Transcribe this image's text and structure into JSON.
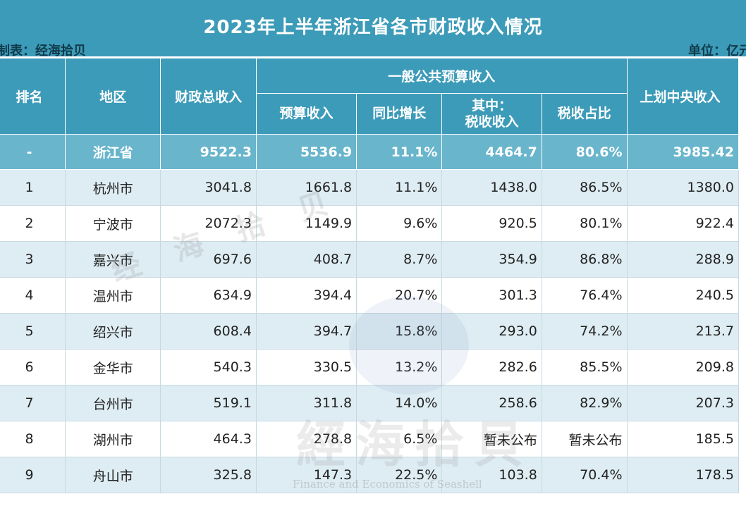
{
  "title": "2023年上半年浙江省各市财政收入情况",
  "maker": "制表：经海拾贝",
  "unit": "单位：亿元",
  "headers": {
    "rank": "排名",
    "region": "地区",
    "total_income": "财政总收入",
    "general_budget": "一般公共预算收入",
    "budget_income": "预算收入",
    "yoy_growth": "同比增长",
    "tax_income_line1": "其中：",
    "tax_income_line2": "税收收入",
    "tax_ratio": "税收占比",
    "central_income": "上划中央收入"
  },
  "total": {
    "rank": "-",
    "region": "浙江省",
    "total_income": "9522.3",
    "budget_income": "5536.9",
    "yoy_growth": "11.1%",
    "tax_income": "4464.7",
    "tax_ratio": "80.6%",
    "central_income": "3985.42"
  },
  "rows": [
    {
      "rank": "1",
      "region": "杭州市",
      "total_income": "3041.8",
      "budget_income": "1661.8",
      "yoy_growth": "11.1%",
      "tax_income": "1438.0",
      "tax_ratio": "86.5%",
      "central_income": "1380.0"
    },
    {
      "rank": "2",
      "region": "宁波市",
      "total_income": "2072.3",
      "budget_income": "1149.9",
      "yoy_growth": "9.6%",
      "tax_income": "920.5",
      "tax_ratio": "80.1%",
      "central_income": "922.4"
    },
    {
      "rank": "3",
      "region": "嘉兴市",
      "total_income": "697.6",
      "budget_income": "408.7",
      "yoy_growth": "8.7%",
      "tax_income": "354.9",
      "tax_ratio": "86.8%",
      "central_income": "288.9"
    },
    {
      "rank": "4",
      "region": "温州市",
      "total_income": "634.9",
      "budget_income": "394.4",
      "yoy_growth": "20.7%",
      "tax_income": "301.3",
      "tax_ratio": "76.4%",
      "central_income": "240.5"
    },
    {
      "rank": "5",
      "region": "绍兴市",
      "total_income": "608.4",
      "budget_income": "394.7",
      "yoy_growth": "15.8%",
      "tax_income": "293.0",
      "tax_ratio": "74.2%",
      "central_income": "213.7"
    },
    {
      "rank": "6",
      "region": "金华市",
      "total_income": "540.3",
      "budget_income": "330.5",
      "yoy_growth": "13.2%",
      "tax_income": "282.6",
      "tax_ratio": "85.5%",
      "central_income": "209.8"
    },
    {
      "rank": "7",
      "region": "台州市",
      "total_income": "519.1",
      "budget_income": "311.8",
      "yoy_growth": "14.0%",
      "tax_income": "258.6",
      "tax_ratio": "82.9%",
      "central_income": "207.3"
    },
    {
      "rank": "8",
      "region": "湖州市",
      "total_income": "464.3",
      "budget_income": "278.8",
      "yoy_growth": "6.5%",
      "tax_income": "暂未公布",
      "tax_ratio": "暂未公布",
      "central_income": "185.5"
    },
    {
      "rank": "9",
      "region": "舟山市",
      "total_income": "325.8",
      "budget_income": "147.3",
      "yoy_growth": "22.5%",
      "tax_income": "103.8",
      "tax_ratio": "70.4%",
      "central_income": "178.5"
    }
  ],
  "watermark": {
    "text_small": "经 海 拾 贝",
    "text_large": "經海拾貝",
    "text_en": "Finance and Economics of Seashell"
  }
}
